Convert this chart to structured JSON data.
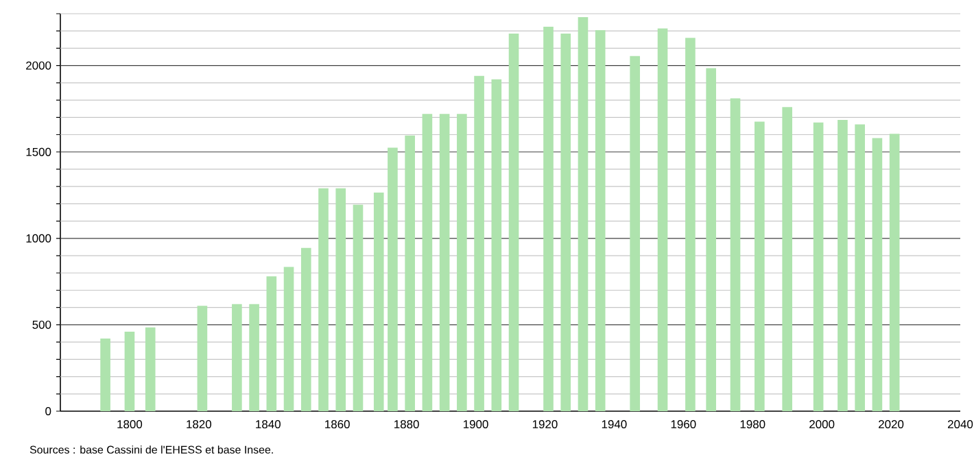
{
  "chart_data": {
    "type": "bar",
    "x": [
      1793,
      1800,
      1806,
      1821,
      1831,
      1836,
      1841,
      1846,
      1851,
      1856,
      1861,
      1866,
      1872,
      1876,
      1881,
      1886,
      1891,
      1896,
      1901,
      1906,
      1911,
      1921,
      1926,
      1931,
      1936,
      1946,
      1954,
      1962,
      1968,
      1975,
      1982,
      1990,
      1999,
      2006,
      2011,
      2016,
      2021
    ],
    "values": [
      420,
      460,
      485,
      610,
      620,
      620,
      780,
      835,
      945,
      1290,
      1290,
      1195,
      1265,
      1525,
      1595,
      1720,
      1720,
      1720,
      1940,
      1920,
      2185,
      2225,
      2185,
      2280,
      2205,
      2055,
      2215,
      2160,
      1985,
      1810,
      1675,
      1760,
      1670,
      1685,
      1660,
      1580,
      1605
    ],
    "color": "#aee3ad",
    "xlim": [
      1780,
      2040
    ],
    "xticks": [
      1800,
      1820,
      1840,
      1860,
      1880,
      1900,
      1920,
      1940,
      1960,
      1980,
      2000,
      2020,
      2040
    ],
    "ylim": [
      0,
      2300
    ],
    "yticks": [
      0,
      {
        "value": 100,
        "label": null
      },
      {
        "value": 200,
        "label": null
      },
      {
        "value": 300,
        "label": null
      },
      {
        "value": 400,
        "label": null
      },
      500,
      {
        "value": 600,
        "label": null
      },
      {
        "value": 700,
        "label": null
      },
      {
        "value": 800,
        "label": null
      },
      {
        "value": 900,
        "label": null
      },
      1000,
      {
        "value": 1100,
        "label": null
      },
      {
        "value": 1200,
        "label": null
      },
      {
        "value": 1300,
        "label": null
      },
      {
        "value": 1400,
        "label": null
      },
      1500,
      {
        "value": 1600,
        "label": null
      },
      {
        "value": 1700,
        "label": null
      },
      {
        "value": 1800,
        "label": null
      },
      {
        "value": 1900,
        "label": null
      },
      2000,
      {
        "value": 2100,
        "label": null
      },
      {
        "value": 2200,
        "label": null
      },
      {
        "value": 2300,
        "label": null
      }
    ],
    "grid": "y",
    "annotations": [
      "Sources : base Cassini de l'EHESS et base Insee."
    ]
  }
}
